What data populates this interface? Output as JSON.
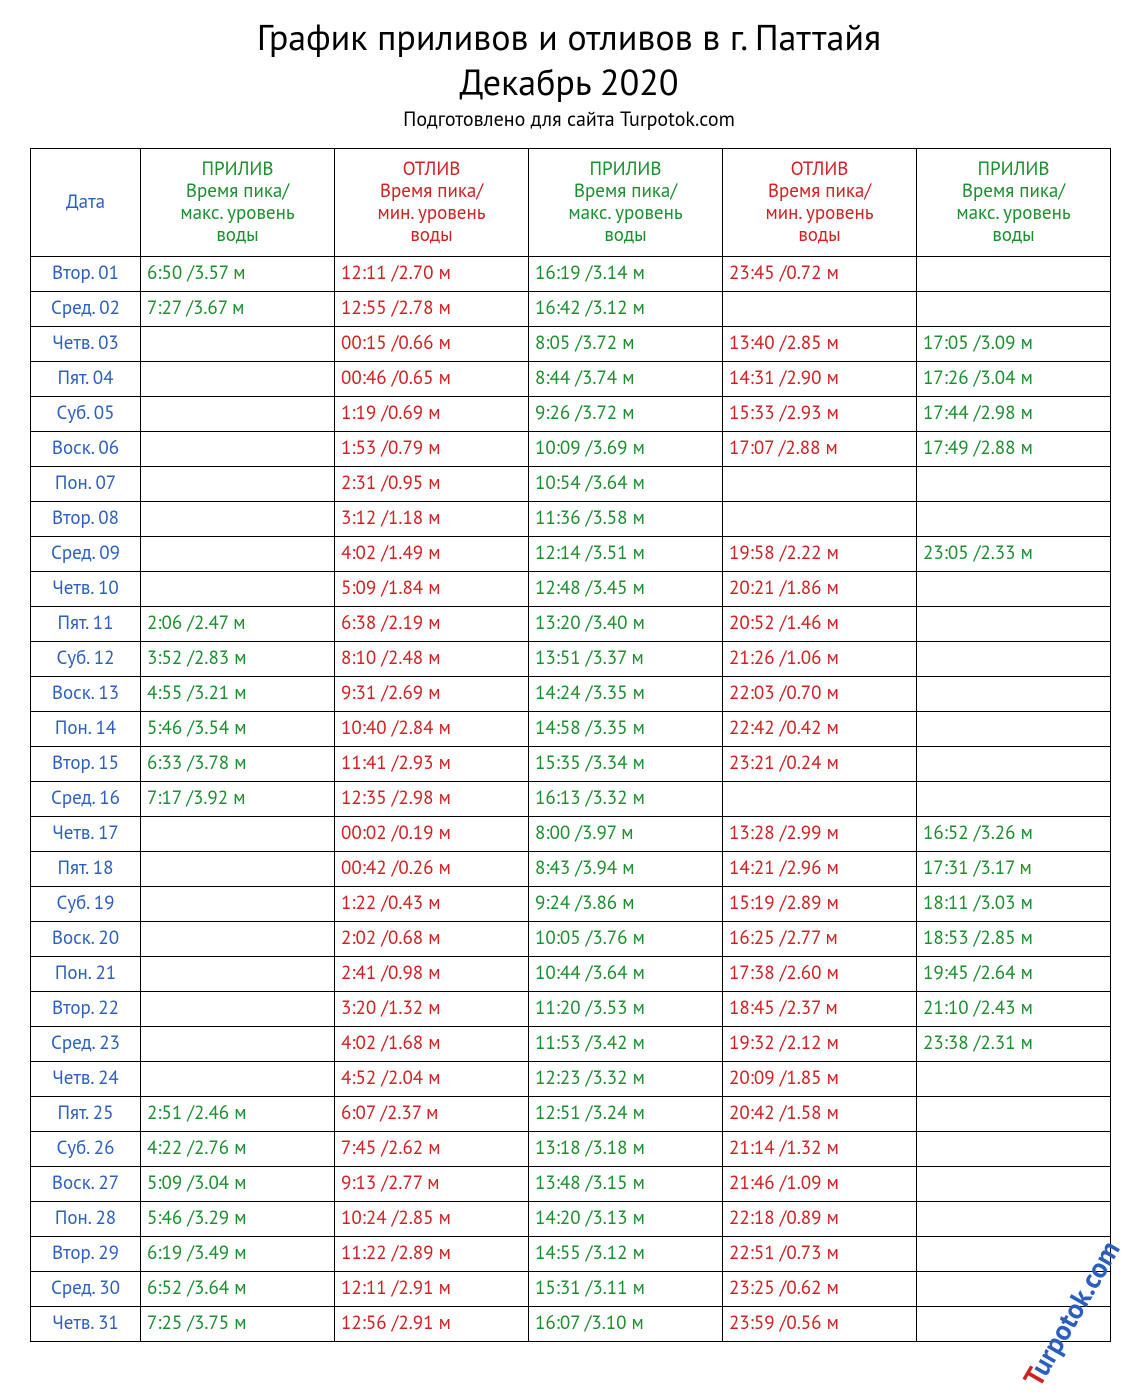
{
  "title_line1": "График приливов и отливов в г. Паттайя",
  "title_line2": "Декабрь 2020",
  "subtitle": "Подготовлено для сайта Turpotok.com",
  "watermark_t": "T",
  "watermark_rest": "urpotok.com",
  "colors": {
    "date": "#2b5fbf",
    "high": "#1a8f2c",
    "low": "#d02020",
    "border": "#000000",
    "background": "#ffffff"
  },
  "font_sizes": {
    "title": 36,
    "subtitle": 20,
    "cell": 19
  },
  "headers": {
    "date": "Дата",
    "high": "ПРИЛИВ\nВремя пика/\nмакс. уровень\nводы",
    "low": "ОТЛИВ\nВремя пика/\nмин. уровень\nводы"
  },
  "column_types": [
    "date",
    "high",
    "low",
    "high",
    "low",
    "high"
  ],
  "rows": [
    {
      "date": "Втор. 01",
      "cells": [
        "6:50  /3.57 м",
        "12:11  /2.70 м",
        "16:19  /3.14 м",
        "23:45  /0.72 м",
        ""
      ]
    },
    {
      "date": "Сред. 02",
      "cells": [
        "7:27  /3.67 м",
        "12:55  /2.78 м",
        "16:42  /3.12 м",
        "",
        ""
      ]
    },
    {
      "date": "Четв. 03",
      "cells": [
        "",
        "00:15  /0.66 м",
        "8:05  /3.72 м",
        "13:40  /2.85 м",
        "17:05  /3.09 м"
      ]
    },
    {
      "date": "Пят. 04",
      "cells": [
        "",
        "00:46  /0.65 м",
        "8:44  /3.74 м",
        "14:31  /2.90 м",
        "17:26  /3.04 м"
      ]
    },
    {
      "date": "Суб. 05",
      "cells": [
        "",
        "1:19  /0.69 м",
        "9:26  /3.72 м",
        "15:33  /2.93 м",
        "17:44  /2.98 м"
      ]
    },
    {
      "date": "Воск. 06",
      "cells": [
        "",
        "1:53  /0.79 м",
        "10:09  /3.69 м",
        "17:07  /2.88 м",
        "17:49  /2.88 м"
      ]
    },
    {
      "date": "Пон. 07",
      "cells": [
        "",
        "2:31  /0.95 м",
        "10:54  /3.64 м",
        "",
        ""
      ]
    },
    {
      "date": "Втор. 08",
      "cells": [
        "",
        "3:12  /1.18 м",
        "11:36  /3.58 м",
        "",
        ""
      ]
    },
    {
      "date": "Сред. 09",
      "cells": [
        "",
        "4:02  /1.49 м",
        "12:14  /3.51 м",
        "19:58  /2.22 м",
        "23:05  /2.33 м"
      ]
    },
    {
      "date": "Четв. 10",
      "cells": [
        "",
        "5:09  /1.84 м",
        "12:48  /3.45 м",
        "20:21  /1.86 м",
        ""
      ]
    },
    {
      "date": "Пят. 11",
      "cells": [
        "2:06  /2.47 м",
        "6:38  /2.19 м",
        "13:20  /3.40 м",
        "20:52  /1.46 м",
        ""
      ]
    },
    {
      "date": "Суб. 12",
      "cells": [
        "3:52  /2.83 м",
        "8:10  /2.48 м",
        "13:51  /3.37 м",
        "21:26  /1.06 м",
        ""
      ]
    },
    {
      "date": "Воск. 13",
      "cells": [
        "4:55  /3.21 м",
        "9:31  /2.69 м",
        "14:24  /3.35 м",
        "22:03  /0.70 м",
        ""
      ]
    },
    {
      "date": "Пон. 14",
      "cells": [
        "5:46  /3.54 м",
        "10:40  /2.84 м",
        "14:58  /3.35 м",
        "22:42  /0.42 м",
        ""
      ]
    },
    {
      "date": "Втор. 15",
      "cells": [
        "6:33  /3.78 м",
        "11:41  /2.93 м",
        "15:35  /3.34 м",
        "23:21  /0.24 м",
        ""
      ]
    },
    {
      "date": "Сред. 16",
      "cells": [
        "7:17  /3.92 м",
        "12:35  /2.98 м",
        "16:13  /3.32 м",
        "",
        ""
      ]
    },
    {
      "date": "Четв. 17",
      "cells": [
        "",
        "00:02  /0.19 м",
        "8:00  /3.97 м",
        "13:28  /2.99 м",
        "16:52  /3.26 м"
      ]
    },
    {
      "date": "Пят. 18",
      "cells": [
        "",
        "00:42  /0.26 м",
        "8:43  /3.94 м",
        "14:21  /2.96 м",
        "17:31  /3.17 м"
      ]
    },
    {
      "date": "Суб. 19",
      "cells": [
        "",
        "1:22  /0.43 м",
        "9:24  /3.86 м",
        "15:19  /2.89 м",
        "18:11  /3.03 м"
      ]
    },
    {
      "date": "Воск. 20",
      "cells": [
        "",
        "2:02  /0.68 м",
        "10:05  /3.76 м",
        "16:25  /2.77 м",
        "18:53  /2.85 м"
      ]
    },
    {
      "date": "Пон. 21",
      "cells": [
        "",
        "2:41  /0.98 м",
        "10:44  /3.64 м",
        "17:38  /2.60 м",
        "19:45  /2.64 м"
      ]
    },
    {
      "date": "Втор. 22",
      "cells": [
        "",
        "3:20  /1.32 м",
        "11:20  /3.53 м",
        "18:45  /2.37 м",
        "21:10  /2.43 м"
      ]
    },
    {
      "date": "Сред. 23",
      "cells": [
        "",
        "4:02  /1.68 м",
        "11:53  /3.42 м",
        "19:32  /2.12 м",
        "23:38  /2.31 м"
      ]
    },
    {
      "date": "Четв. 24",
      "cells": [
        "",
        "4:52  /2.04 м",
        "12:23  /3.32 м",
        "20:09  /1.85 м",
        ""
      ]
    },
    {
      "date": "Пят. 25",
      "cells": [
        "2:51  /2.46 м",
        "6:07  /2.37 м",
        "12:51  /3.24 м",
        "20:42  /1.58 м",
        ""
      ]
    },
    {
      "date": "Суб. 26",
      "cells": [
        "4:22  /2.76 м",
        "7:45  /2.62 м",
        "13:18  /3.18 м",
        "21:14  /1.32 м",
        ""
      ]
    },
    {
      "date": "Воск. 27",
      "cells": [
        "5:09  /3.04 м",
        "9:13  /2.77 м",
        "13:48  /3.15 м",
        "21:46  /1.09 м",
        ""
      ]
    },
    {
      "date": "Пон. 28",
      "cells": [
        "5:46  /3.29 м",
        "10:24  /2.85 м",
        "14:20  /3.13 м",
        "22:18  /0.89 м",
        ""
      ]
    },
    {
      "date": "Втор. 29",
      "cells": [
        "6:19  /3.49 м",
        "11:22  /2.89 м",
        "14:55  /3.12 м",
        "22:51  /0.73 м",
        ""
      ]
    },
    {
      "date": "Сред. 30",
      "cells": [
        "6:52  /3.64 м",
        "12:11  /2.91 м",
        "15:31  /3.11 м",
        "23:25  /0.62 м",
        ""
      ]
    },
    {
      "date": "Четв. 31",
      "cells": [
        "7:25  /3.75 м",
        "12:56  /2.91 м",
        "16:07  /3.10 м",
        "23:59  /0.56 м",
        ""
      ]
    }
  ]
}
